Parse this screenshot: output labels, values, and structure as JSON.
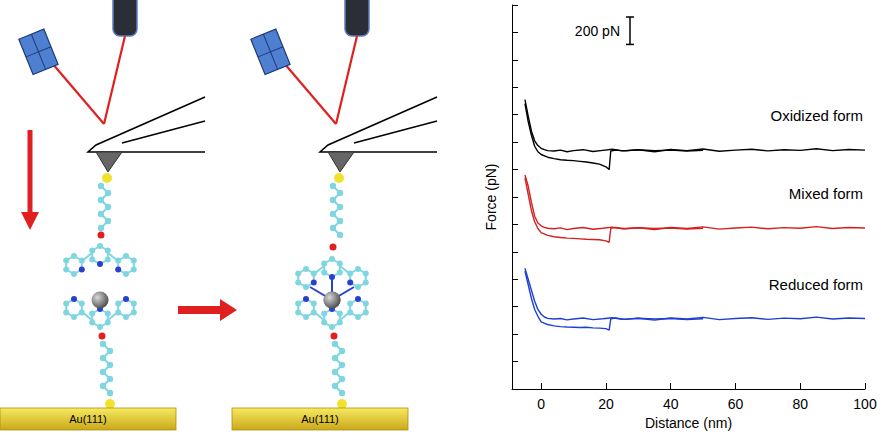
{
  "diagram": {
    "substrate_labels": [
      "Au(111)",
      "Au(111)"
    ]
  },
  "chart_data": {
    "type": "line",
    "x_label": "Distance (nm)",
    "y_label": "Force (pN)",
    "xlim": [
      -9,
      100
    ],
    "xticks": [
      0,
      20,
      40,
      60,
      80,
      100
    ],
    "ylim": [
      0,
      2800
    ],
    "yticks": [
      0,
      200,
      400,
      600,
      800,
      1000,
      1200,
      1400,
      1600,
      1800,
      2000,
      2200,
      2400,
      2600,
      2800
    ],
    "tick_labels": "x",
    "grid": false,
    "scale_bar": {
      "value": 200,
      "label": "200 pN"
    },
    "series": [
      {
        "name": "Oxidized form",
        "color": "#000000",
        "curves": [
          {
            "x": [
              -5,
              -4,
              -3,
              -2,
              -1,
              0,
              1,
              2,
              4,
              6,
              8,
              10,
              13,
              16,
              19,
              22,
              25,
              30,
              35,
              40,
              45,
              50,
              55,
              60,
              65,
              70,
              75,
              80,
              85,
              90,
              95,
              100
            ],
            "values": [
              2110,
              1990,
              1880,
              1810,
              1775,
              1755,
              1745,
              1738,
              1735,
              1742,
              1730,
              1738,
              1745,
              1732,
              1740,
              1748,
              1736,
              1744,
              1730,
              1746,
              1738,
              1750,
              1734,
              1742,
              1748,
              1736,
              1745,
              1740,
              1752,
              1738,
              1746,
              1742
            ]
          },
          {
            "x": [
              -5,
              -4,
              -3,
              -2,
              -1,
              0,
              2,
              4,
              6,
              8,
              10,
              12,
              14,
              16,
              18,
              20,
              21,
              21.5,
              23,
              26,
              30,
              35,
              40,
              45,
              50
            ],
            "values": [
              2080,
              1950,
              1850,
              1770,
              1730,
              1710,
              1690,
              1680,
              1672,
              1668,
              1665,
              1660,
              1655,
              1648,
              1640,
              1620,
              1600,
              1735,
              1742,
              1736,
              1745,
              1738,
              1742,
              1735,
              1740
            ]
          }
        ]
      },
      {
        "name": "Mixed form",
        "color": "#d42020",
        "curves": [
          {
            "x": [
              -5,
              -4,
              -3,
              -2,
              -1,
              0,
              1,
              2,
              4,
              6,
              8,
              10,
              13,
              16,
              19,
              22,
              25,
              30,
              35,
              40,
              45,
              50,
              55,
              60,
              65,
              70,
              75,
              80,
              85,
              90,
              95,
              100
            ],
            "values": [
              1560,
              1480,
              1360,
              1260,
              1210,
              1190,
              1178,
              1172,
              1168,
              1175,
              1162,
              1170,
              1178,
              1165,
              1172,
              1180,
              1168,
              1176,
              1162,
              1178,
              1170,
              1182,
              1166,
              1174,
              1180,
              1168,
              1177,
              1172,
              1184,
              1170,
              1178,
              1174
            ]
          },
          {
            "x": [
              -5,
              -4,
              -3,
              -2,
              -1,
              0,
              2,
              4,
              6,
              8,
              10,
              12,
              14,
              16,
              18,
              20,
              21,
              21.5,
              23,
              26,
              30,
              35,
              40,
              45,
              50
            ],
            "values": [
              1540,
              1420,
              1300,
              1220,
              1170,
              1140,
              1120,
              1110,
              1105,
              1100,
              1098,
              1095,
              1092,
              1090,
              1088,
              1080,
              1070,
              1172,
              1178,
              1168,
              1176,
              1170,
              1174,
              1166,
              1172
            ]
          }
        ]
      },
      {
        "name": "Reduced form",
        "color": "#1f3fd0",
        "curves": [
          {
            "x": [
              -5,
              -4,
              -3,
              -2,
              -1,
              0,
              1,
              2,
              4,
              6,
              8,
              10,
              13,
              16,
              19,
              22,
              25,
              30,
              35,
              40,
              45,
              50,
              55,
              60,
              65,
              70,
              75,
              80,
              85,
              90,
              95,
              100
            ],
            "values": [
              880,
              800,
              720,
              640,
              580,
              545,
              525,
              515,
              510,
              514,
              504,
              510,
              518,
              506,
              512,
              520,
              508,
              516,
              502,
              518,
              510,
              522,
              506,
              514,
              520,
              508,
              517,
              512,
              524,
              510,
              518,
              514
            ]
          },
          {
            "x": [
              -5,
              -4,
              -3,
              -2,
              -1,
              0,
              2,
              4,
              6,
              8,
              10,
              12,
              14,
              16,
              18,
              20,
              21,
              21.5,
              23,
              26,
              30,
              35,
              40,
              45,
              50
            ],
            "values": [
              860,
              760,
              660,
              580,
              530,
              490,
              470,
              460,
              455,
              452,
              450,
              448,
              450,
              446,
              444,
              440,
              430,
              512,
              518,
              508,
              516,
              510,
              514,
              506,
              512
            ]
          }
        ]
      }
    ]
  }
}
